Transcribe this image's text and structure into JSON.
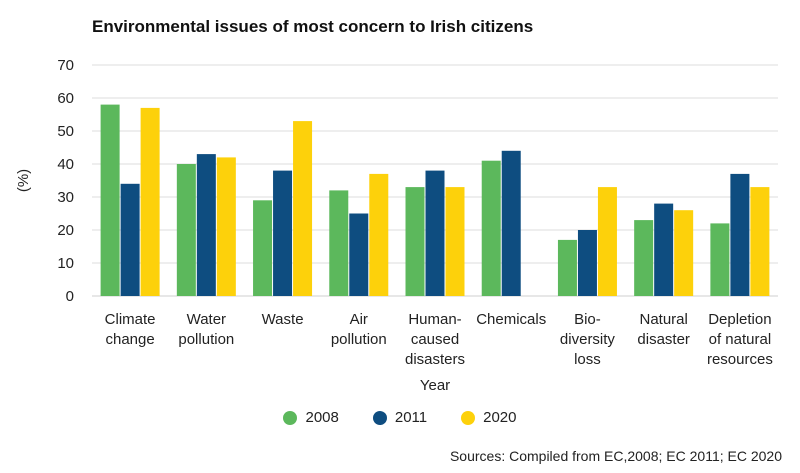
{
  "chart_data": {
    "type": "bar",
    "title": "Environmental issues of most concern to Irish citizens",
    "xlabel": "Year",
    "ylabel": "(%)",
    "ylim": [
      0,
      70
    ],
    "yticks": [
      0,
      10,
      20,
      30,
      40,
      50,
      60,
      70
    ],
    "grid": true,
    "legend_position": "bottom",
    "categories": [
      [
        "Climate",
        "change"
      ],
      [
        "Water",
        "pollution"
      ],
      [
        "Waste"
      ],
      [
        "Air",
        "pollution"
      ],
      [
        "Human-",
        "caused",
        "disasters"
      ],
      [
        "Chemicals"
      ],
      [
        "Bio-",
        "diversity",
        "loss"
      ],
      [
        "Natural",
        "disaster"
      ],
      [
        "Depletion",
        "of natural",
        "resources"
      ]
    ],
    "series": [
      {
        "name": "2008",
        "color": "#5cb85c",
        "values": [
          58,
          40,
          29,
          32,
          33,
          41,
          17,
          23,
          22
        ]
      },
      {
        "name": "2011",
        "color": "#0e4d80",
        "values": [
          34,
          43,
          38,
          25,
          38,
          44,
          20,
          28,
          37
        ]
      },
      {
        "name": "2020",
        "color": "#fdd10b",
        "values": [
          57,
          42,
          53,
          37,
          33,
          null,
          33,
          26,
          33
        ]
      }
    ],
    "source": "Sources: Compiled from EC,2008; EC 2011; EC 2020"
  }
}
